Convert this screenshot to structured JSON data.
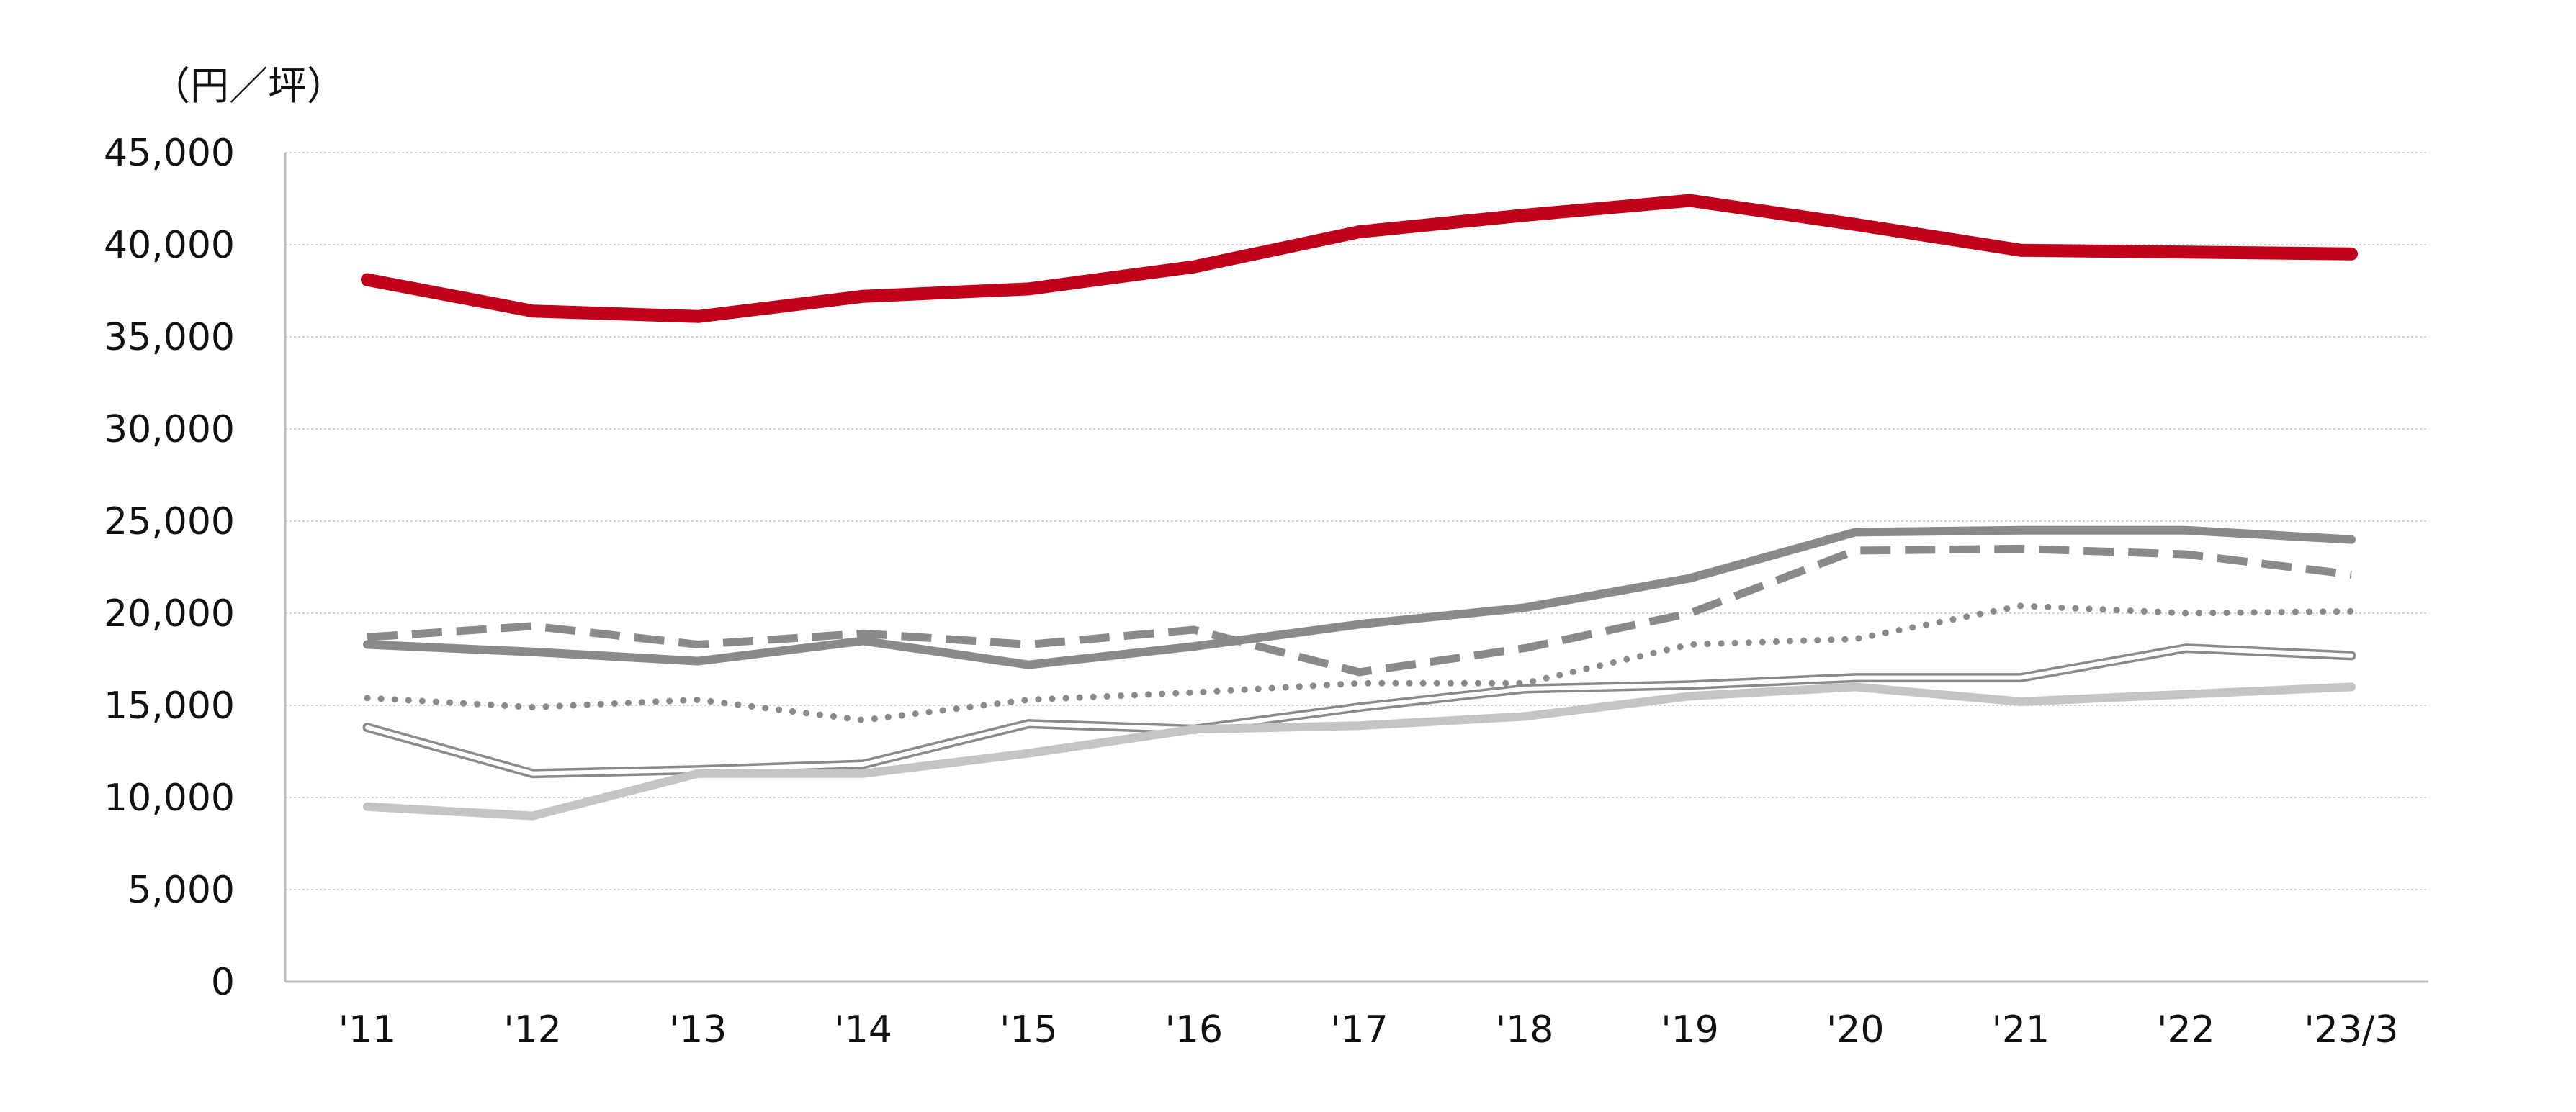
{
  "chart_data": {
    "type": "line",
    "unit_label": "（円／坪）",
    "categories": [
      "'11",
      "'12",
      "'13",
      "'14",
      "'15",
      "'16",
      "'17",
      "'18",
      "'19",
      "'20",
      "'21",
      "'22",
      "'23/3"
    ],
    "ylim": [
      0,
      45000
    ],
    "y_ticks": [
      0,
      5000,
      10000,
      15000,
      20000,
      25000,
      30000,
      35000,
      40000,
      45000
    ],
    "y_tick_labels": [
      "0",
      "5,000",
      "10,000",
      "15,000",
      "20,000",
      "25,000",
      "30,000",
      "35,000",
      "40,000",
      "45,000"
    ],
    "grid": true,
    "legend": "none",
    "series": [
      {
        "style": "solid-thick",
        "color": "#c0001a",
        "values": [
          38100,
          36400,
          36100,
          37200,
          37600,
          38800,
          40700,
          41600,
          42400,
          41100,
          39700,
          39600,
          39500
        ]
      },
      {
        "style": "solid",
        "color": "#8a8a8a",
        "values": [
          18300,
          17900,
          17400,
          18500,
          17200,
          18200,
          19400,
          20300,
          21900,
          24400,
          24500,
          24500,
          24000
        ]
      },
      {
        "style": "dashed",
        "color": "#8a8a8a",
        "values": [
          18700,
          19300,
          18300,
          18900,
          18300,
          19100,
          16800,
          18100,
          20000,
          23400,
          23500,
          23200,
          22100
        ]
      },
      {
        "style": "dotted",
        "color": "#8a8a8a",
        "values": [
          15400,
          14900,
          15300,
          14200,
          15300,
          15700,
          16200,
          16200,
          18300,
          18600,
          20400,
          20000,
          20100
        ]
      },
      {
        "style": "double",
        "color": "#8a8a8a",
        "values": [
          13800,
          11300,
          11500,
          11800,
          14000,
          13700,
          14900,
          15900,
          16100,
          16500,
          16500,
          18100,
          17700
        ]
      },
      {
        "style": "solid-light",
        "color": "#c4c4c4",
        "values": [
          9500,
          9000,
          11300,
          11300,
          12400,
          13700,
          13900,
          14400,
          15500,
          16000,
          15200,
          15600,
          16000
        ]
      }
    ]
  }
}
